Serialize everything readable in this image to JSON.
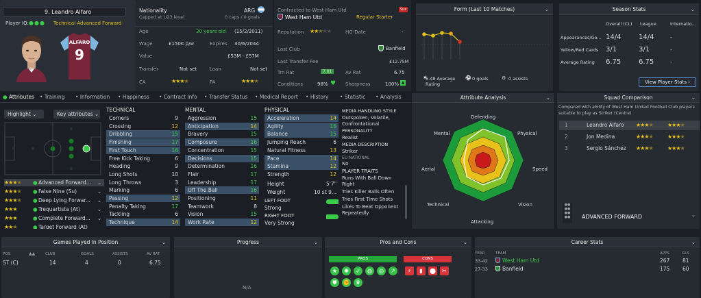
{
  "player": {
    "name": "9. Leandro Alfaro",
    "iq_label": "Player IQ:",
    "role_label": "Technical Advanced Forward",
    "shirt_name": "ALFARO",
    "shirt_number": "9"
  },
  "info": {
    "nationality_label": "Nationality",
    "nationality_value": "ARG",
    "caps": "Capped at U23 level",
    "caps_value": "0 caps / 0 goals",
    "age_label": "Age",
    "age_value": "30 years old",
    "dob": "(15/2/2011)",
    "wage_label": "Wage",
    "wage_value": "£150K p/w",
    "expires_label": "Expires",
    "expires_value": "30/6/2044",
    "value_label": "Value",
    "value_value": "£53M - £57M",
    "transfer_label": "Transfer",
    "transfer_value": "Not set",
    "loan_label": "Loan",
    "loan_value": "Not set",
    "ca_label": "CA",
    "pa_label": "PA"
  },
  "contract": {
    "contracted_to": "Contracted to West Ham Utd",
    "club": "West Ham Utd",
    "status": "Regular Starter",
    "sub_badge": "Sus",
    "reputation_label": "Reputation",
    "hg_label": "HG-Date",
    "hg_value": "-",
    "last_club_label": "Last Club",
    "last_club_value": "Banfield",
    "last_fee_label": "Last Transfer Fee",
    "last_fee_value": "£12.75M",
    "trn_rat_label": "Trn Rat",
    "trn_rat_value": "7.01",
    "av_rat_label": "Av Rat",
    "av_rat_value": "6.75",
    "conditions_label": "Conditions",
    "conditions_value": "98%",
    "sharpness_label": "Sharpness",
    "sharpness_value": "100%"
  },
  "form": {
    "title": "Form (Last 10 Matches)",
    "avg_rating": "6.48 Average",
    "avg_rating2": "Rating",
    "goals": "0 goals",
    "assists": "0 assists"
  },
  "season": {
    "title": "Season Stats",
    "col1": "Overall (CL)",
    "col2": "League",
    "col3": "Internatio...",
    "rows": [
      {
        "label": "Appearances/Go...",
        "c1": "14/4",
        "c2": "14/4",
        "c3": "-"
      },
      {
        "label": "Yellow/Red Cards",
        "c1": "3/1",
        "c2": "3/1",
        "c3": "-"
      },
      {
        "label": "Average Rating",
        "c1": "6.75",
        "c2": "6.75",
        "c3": "-"
      }
    ],
    "button": "View Player Stats"
  },
  "tabs": [
    "Attributes",
    "Training",
    "Information",
    "Happiness",
    "Contract Info",
    "Transfer Status",
    "Medical Report",
    "History",
    "Statistic",
    "Analysis"
  ],
  "left_controls": {
    "highlight": "Highlight",
    "key_attrs": "Key attributes"
  },
  "roles": [
    {
      "name": "Advanced Forward..."
    },
    {
      "name": "False Nine (Su)"
    },
    {
      "name": "Deep Lying Forwar..."
    },
    {
      "name": "Trequartista (At)"
    },
    {
      "name": "Complete Forward..."
    },
    {
      "name": "Target Forward (At)"
    }
  ],
  "technical": {
    "title": "TECHNICAL",
    "rows": [
      {
        "name": "Corners",
        "value": "9"
      },
      {
        "name": "Crossing",
        "value": "12"
      },
      {
        "name": "Dribbling",
        "value": "15"
      },
      {
        "name": "Finishing",
        "value": "17"
      },
      {
        "name": "First Touch",
        "value": "16"
      },
      {
        "name": "Free Kick Taking",
        "value": "6"
      },
      {
        "name": "Heading",
        "value": "9"
      },
      {
        "name": "Long Shots",
        "value": "10"
      },
      {
        "name": "Long Throws",
        "value": "3"
      },
      {
        "name": "Marking",
        "value": "6"
      },
      {
        "name": "Passing",
        "value": "12"
      },
      {
        "name": "Penalty Taking",
        "value": "17"
      },
      {
        "name": "Tackling",
        "value": "6"
      },
      {
        "name": "Technique",
        "value": "14"
      }
    ]
  },
  "mental": {
    "title": "MENTAL",
    "rows": [
      {
        "name": "Aggression",
        "value": "15"
      },
      {
        "name": "Anticipation",
        "value": "14"
      },
      {
        "name": "Bravery",
        "value": "15"
      },
      {
        "name": "Composure",
        "value": "16"
      },
      {
        "name": "Concentration",
        "value": "15"
      },
      {
        "name": "Decisions",
        "value": "15"
      },
      {
        "name": "Determination",
        "value": "16"
      },
      {
        "name": "Flair",
        "value": "17"
      },
      {
        "name": "Leadership",
        "value": "17"
      },
      {
        "name": "Off The Ball",
        "value": "16"
      },
      {
        "name": "Positioning",
        "value": "11"
      },
      {
        "name": "Teamwork",
        "value": "8"
      },
      {
        "name": "Vision",
        "value": "15"
      },
      {
        "name": "Work Rate",
        "value": "12"
      }
    ]
  },
  "physical": {
    "title": "PHYSICAL",
    "rows": [
      {
        "name": "Acceleration",
        "value": "14"
      },
      {
        "name": "Agility",
        "value": "16"
      },
      {
        "name": "Balance",
        "value": "15"
      },
      {
        "name": "Jumping Reach",
        "value": "6"
      },
      {
        "name": "Natural Fitness",
        "value": "13"
      },
      {
        "name": "Pace",
        "value": "14"
      },
      {
        "name": "Stamina",
        "value": "12"
      },
      {
        "name": "Strength",
        "value": "12"
      }
    ],
    "height_label": "Height",
    "height_value": "5'7\"",
    "weight_label": "Weight",
    "weight_value": "10 st 9...",
    "left_foot_label": "LEFT FOOT",
    "left_foot_value": "Strong",
    "right_foot_label": "RIGHT FOOT",
    "right_foot_value": "Very Strong"
  },
  "media": {
    "style_title": "MEDIA HANDLING STYLE",
    "style_value": "Outspoken, Volatile, Confrontational",
    "personality_title": "PERSONALITY",
    "personality_value": "Realist",
    "description_title": "MEDIA DESCRIPTION",
    "description_value": "Striker",
    "eu_title": "EU NATIONAL",
    "eu_value": "No",
    "traits_title": "PLAYER TRAITS",
    "traits": [
      "Runs With Ball Down Right",
      "Tries Killer Balls Often",
      "Tries First Time Shots",
      "Likes To Beat Opponent Repeatedly"
    ]
  },
  "analysis": {
    "title": "Attribute Analysis",
    "axes": [
      "Defending",
      "Physical",
      "Speed",
      "Vision",
      "Attacking",
      "Technical",
      "Aerial",
      "Mental"
    ]
  },
  "squad": {
    "title": "Squad Comparison",
    "subtitle": "Compared with ability of West Ham United Football Club players suitable to play as Striker (Centre)",
    "rows": [
      {
        "rank": "1",
        "name": "Leandro Alfaro"
      },
      {
        "rank": "2",
        "name": "Jon Medina"
      },
      {
        "rank": "3",
        "name": "Sergio Sánchez"
      }
    ],
    "role_title": "ADVANCED FORWARD"
  },
  "bottom": {
    "games_title": "Games Played In Position",
    "games_headers": [
      "POS",
      "CLUB",
      "GOALS",
      "ASSISTS",
      "AV RAT"
    ],
    "games_row": [
      "ST (C)",
      "14",
      "4",
      "0",
      "6.75"
    ],
    "progress_title": "Progress",
    "progress_value": "N/A",
    "pros_title": "Pros and Cons",
    "pros_label": "PROS",
    "cons_label": "CONS",
    "career_title": "Career Stats",
    "career_headers": [
      "YEAR",
      "TEAM",
      "APPS",
      "GLS"
    ],
    "career_rows": [
      {
        "year": "33-42",
        "team": "West Ham Utd",
        "apps": "267",
        "gls": "81"
      },
      {
        "year": "27-33",
        "team": "Banfield",
        "apps": "175",
        "gls": "60"
      }
    ]
  },
  "colors": {
    "accent_green": "#3dcc4a",
    "accent_yellow": "#e6c619",
    "claret": "#7a263a",
    "highlight_blue": "#3a5066"
  }
}
